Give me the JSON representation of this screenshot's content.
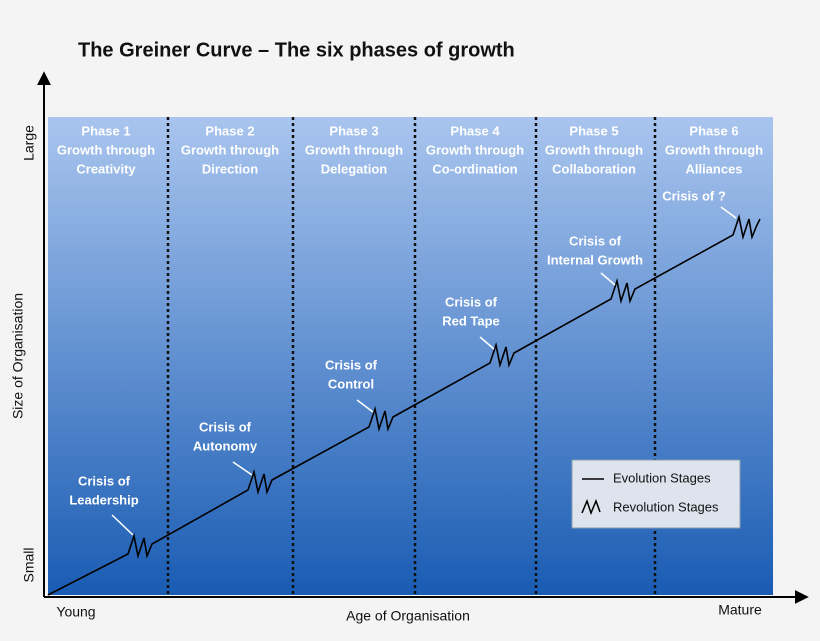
{
  "title": "The Greiner Curve – The six phases of growth",
  "y_axis": {
    "label": "Size of Organisation",
    "top": "Large",
    "bottom": "Small"
  },
  "x_axis": {
    "label": "Age of Organisation",
    "left": "Young",
    "right": "Mature"
  },
  "phases": [
    {
      "lines": [
        "Phase 1",
        "Growth through",
        "Creativity"
      ]
    },
    {
      "lines": [
        "Phase 2",
        "Growth through",
        "Direction"
      ]
    },
    {
      "lines": [
        "Phase 3",
        "Growth through",
        "Delegation"
      ]
    },
    {
      "lines": [
        "Phase 4",
        "Growth through",
        "Co-ordination"
      ]
    },
    {
      "lines": [
        "Phase 5",
        "Growth through",
        "Collaboration"
      ]
    },
    {
      "lines": [
        "Phase 6",
        "Growth through",
        "Alliances"
      ]
    }
  ],
  "crises": [
    {
      "lines": [
        "Crisis of",
        "Leadership"
      ]
    },
    {
      "lines": [
        "Crisis of",
        "Autonomy"
      ]
    },
    {
      "lines": [
        "Crisis of",
        "Control"
      ]
    },
    {
      "lines": [
        "Crisis of",
        "Red Tape"
      ]
    },
    {
      "lines": [
        "Crisis of",
        "Internal Growth"
      ]
    },
    {
      "lines": [
        "Crisis of ?"
      ]
    }
  ],
  "legend": {
    "evolution": "Evolution Stages",
    "revolution": "Revolution Stages"
  }
}
